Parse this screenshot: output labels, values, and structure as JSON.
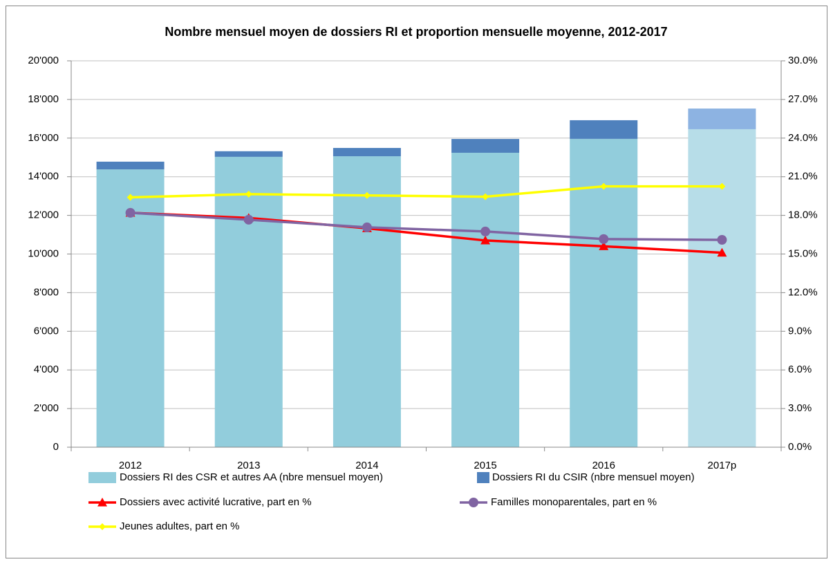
{
  "chart_data": {
    "type": "bar",
    "stacked": true,
    "title": "Nombre mensuel moyen de dossiers RI et proportion mensuelle moyenne, 2012-2017",
    "categories": [
      "2012",
      "2013",
      "2014",
      "2015",
      "2016",
      "2017p"
    ],
    "ylim": [
      0,
      20000
    ],
    "yticks": [
      0,
      {
        "value": 2000,
        "label": "2'000"
      },
      {
        "value": 4000,
        "label": "4'000"
      },
      {
        "value": 6000,
        "label": "6'000"
      },
      {
        "value": 8000,
        "label": "8'000"
      },
      {
        "value": 10000,
        "label": "10'000"
      },
      {
        "value": 12000,
        "label": "12'000"
      },
      {
        "value": 14000,
        "label": "14'000"
      },
      {
        "value": 16000,
        "label": "16'000"
      },
      {
        "value": 18000,
        "label": "18'000"
      },
      {
        "value": 20000,
        "label": "20'000"
      }
    ],
    "y2lim": [
      0,
      30
    ],
    "y2ticks": [
      {
        "value": 0,
        "label": "0.0%"
      },
      {
        "value": 3,
        "label": "3.0%"
      },
      {
        "value": 6,
        "label": "6.0%"
      },
      {
        "value": 9,
        "label": "9.0%"
      },
      {
        "value": 12,
        "label": "12.0%"
      },
      {
        "value": 15,
        "label": "15.0%"
      },
      {
        "value": 18,
        "label": "18.0%"
      },
      {
        "value": 21,
        "label": "21.0%"
      },
      {
        "value": 24,
        "label": "24.0%"
      },
      {
        "value": 27,
        "label": "27.0%"
      },
      {
        "value": 30,
        "label": "30.0%"
      }
    ],
    "grid": true,
    "series": [
      {
        "name": "Dossiers RI des CSR et autres AA (nbre mensuel moyen)",
        "type": "bar",
        "color": "#92cddc",
        "colors": [
          "#92cddc",
          "#92cddc",
          "#92cddc",
          "#92cddc",
          "#92cddc",
          "#b7dde8"
        ],
        "values": [
          14380,
          15030,
          15060,
          15240,
          15960,
          16460
        ]
      },
      {
        "name": "Dossiers RI du CSIR (nbre mensuel moyen)",
        "type": "bar",
        "color": "#4f81bd",
        "colors": [
          "#4f81bd",
          "#4f81bd",
          "#4f81bd",
          "#4f81bd",
          "#4f81bd",
          "#8db3e2"
        ],
        "values": [
          400,
          290,
          430,
          715,
          965,
          1070
        ]
      },
      {
        "name": "Dossiers avec activité lucrative, part en %",
        "type": "line",
        "axis": "y2",
        "marker": "triangle",
        "color": "#ff0000",
        "values": [
          18.2,
          17.8,
          17.0,
          16.05,
          15.6,
          15.1
        ]
      },
      {
        "name": "Familles monoparentales, part en %",
        "type": "line",
        "axis": "y2",
        "marker": "circle",
        "color": "#8064a2",
        "values": [
          18.2,
          17.66,
          17.07,
          16.75,
          16.16,
          16.1
        ]
      },
      {
        "name": "Jeunes adultes, part en %",
        "type": "line",
        "axis": "y2",
        "marker": "diamond",
        "color": "#ffff00",
        "values": [
          19.4,
          19.65,
          19.55,
          19.45,
          20.25,
          20.25
        ]
      }
    ]
  }
}
